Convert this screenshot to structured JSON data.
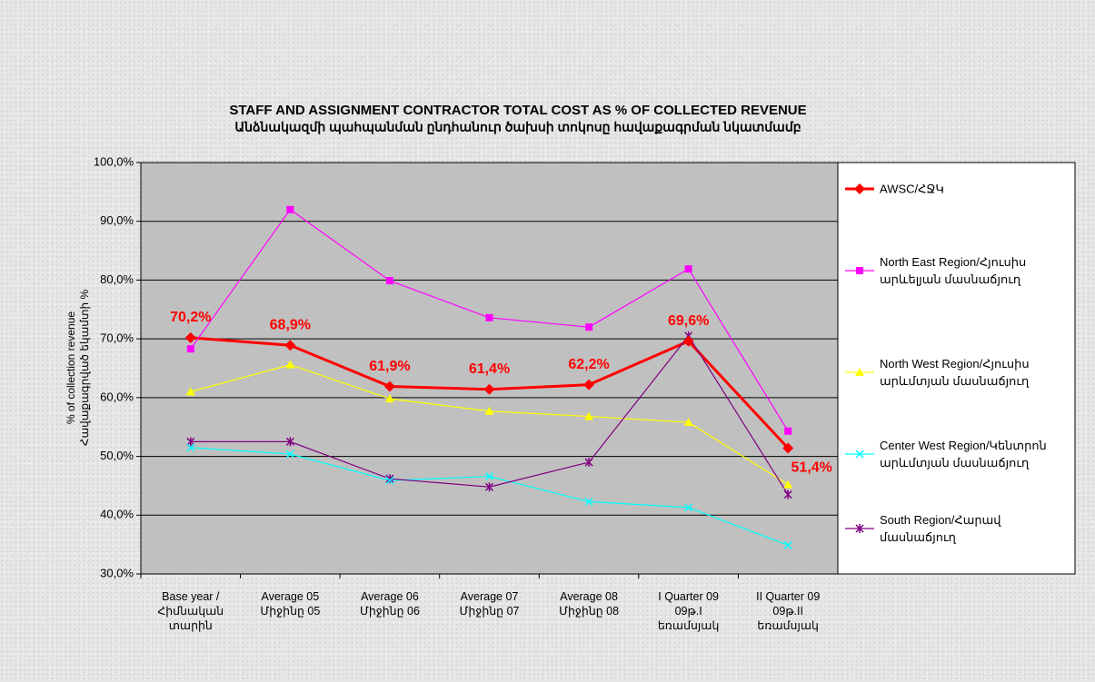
{
  "chart_data": {
    "type": "line",
    "title": "STAFF AND ASSIGNMENT CONTRACTOR TOTAL COST AS % OF COLLECTED REVENUE",
    "subtitle": "Անձնակազմի պահպանման ընդհանուր ծախսի տոկոսը հավաքագրման  նկատմամբ",
    "y_label": [
      "% of collection revenue",
      "Հավաքագրված եկամտի %"
    ],
    "categories": [
      "Base year /\nՀիմնական\nտարին",
      "Average 05\nՄիջինը 05",
      "Average 06\nՄիջինը 06",
      "Average 07\nՄիջինը 07",
      "Average 08\nՄիջինը 08",
      "I Quarter 09\n09թ.I\nեռամսյակ",
      "II Quarter 09\n09թ.II\nեռամսյակ"
    ],
    "ylim": [
      30,
      100
    ],
    "yticks": [
      {
        "value": 30,
        "label": "30,0%"
      },
      {
        "value": 40,
        "label": "40,0%"
      },
      {
        "value": 50,
        "label": "50,0%"
      },
      {
        "value": 60,
        "label": "60,0%"
      },
      {
        "value": 70,
        "label": "70,0%"
      },
      {
        "value": 80,
        "label": "80,0%"
      },
      {
        "value": 90,
        "label": "90,0%"
      },
      {
        "value": 100,
        "label": "100,0%"
      }
    ],
    "grid": true,
    "legend": "right",
    "series": [
      {
        "name": "AWSC/ՀՋԿ",
        "color": "#ff0000",
        "marker": "diamond",
        "values": [
          70.2,
          68.9,
          61.9,
          61.4,
          62.2,
          69.6,
          51.4
        ],
        "value_labels": [
          "70,2%",
          "68,9%",
          "61,9%",
          "61,4%",
          "62,2%",
          "69,6%",
          "51,4%"
        ]
      },
      {
        "name": "North East Region/Հյուսիս արևելյան մասնաճյուղ",
        "color": "#ff00ff",
        "marker": "square",
        "values": [
          68.3,
          92.0,
          79.9,
          73.6,
          72.0,
          81.9,
          54.3
        ]
      },
      {
        "name": "North West Region/Հյուսիս արևմտյան մասնաճյուղ",
        "color": "#ffff00",
        "marker": "triangle",
        "values": [
          61.0,
          65.6,
          59.8,
          57.7,
          56.8,
          55.8,
          45.2
        ]
      },
      {
        "name": "Center West Region/Կենտրոն արևմտյան մասնաճյուղ",
        "color": "#00ffff",
        "marker": "x",
        "values": [
          51.5,
          50.4,
          45.9,
          46.6,
          42.3,
          41.3,
          34.9
        ]
      },
      {
        "name": "South Region/Հարավ մասնաճյուղ",
        "color": "#800080",
        "marker": "star",
        "values": [
          52.5,
          52.5,
          46.2,
          44.8,
          49.0,
          70.5,
          43.5
        ]
      }
    ]
  }
}
